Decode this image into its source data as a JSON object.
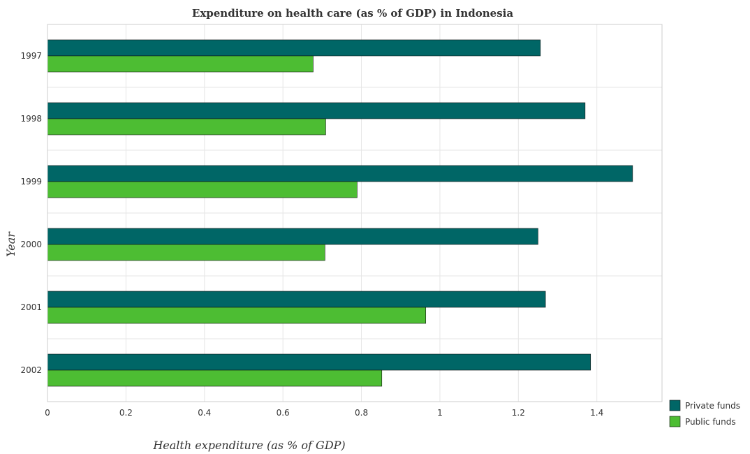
{
  "colors": {
    "private": "#006666",
    "public": "#4dbd33",
    "bar_edge": "#111111",
    "grid": "#e6e6e6"
  },
  "chart_data": {
    "type": "bar",
    "orientation": "horizontal",
    "title": "Expenditure on health care (as % of GDP) in Indonesia",
    "xlabel": "Health expenditure (as % of GDP)",
    "ylabel": "Year",
    "categories": [
      "1997",
      "1998",
      "1999",
      "2000",
      "2001",
      "2002"
    ],
    "series": [
      {
        "name": "Private funds",
        "values": [
          1.256,
          1.37,
          1.491,
          1.25,
          1.269,
          1.384
        ]
      },
      {
        "name": "Public funds",
        "values": [
          0.677,
          0.709,
          0.789,
          0.707,
          0.964,
          0.852
        ]
      }
    ],
    "xlim": [
      0,
      1.566
    ],
    "xticks": [
      "0",
      "0.2",
      "0.4",
      "0.6",
      "0.8",
      "1",
      "1.2",
      "1.4"
    ],
    "legend_position": "bottom-right",
    "grid": true
  }
}
